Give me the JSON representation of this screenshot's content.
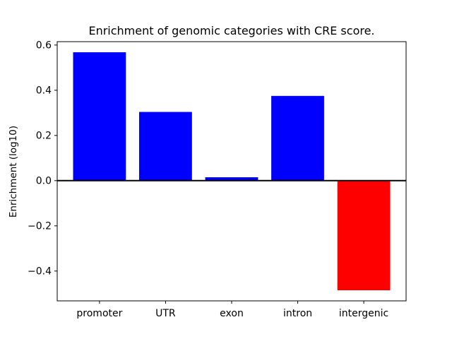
{
  "figure": {
    "background": "#ffffff",
    "frame_color": "#000000"
  },
  "chart_data": {
    "type": "bar",
    "title": "Enrichment of genomic categories with CRE score.",
    "xlabel": "",
    "ylabel": "Enrichment (log10)",
    "categories": [
      "promoter",
      "UTR",
      "exon",
      "intron",
      "intergenic"
    ],
    "values": [
      0.568,
      0.304,
      0.015,
      0.375,
      -0.485
    ],
    "bar_colors": [
      "#0000ff",
      "#0000ff",
      "#0000ff",
      "#0000ff",
      "#ff0000"
    ],
    "positive_color": "#0000ff",
    "negative_color": "#ff0000",
    "yticks": [
      0.6,
      0.4,
      0.2,
      0.0,
      -0.2,
      -0.4
    ],
    "ytick_labels": [
      "0.6",
      "0.4",
      "0.2",
      "0.0",
      "−0.2",
      "−0.4"
    ],
    "ylim": [
      -0.532,
      0.615
    ],
    "xlim": [
      -0.64,
      4.64
    ],
    "bar_width": 0.8,
    "zero_line": true,
    "grid": false,
    "legend": null
  }
}
